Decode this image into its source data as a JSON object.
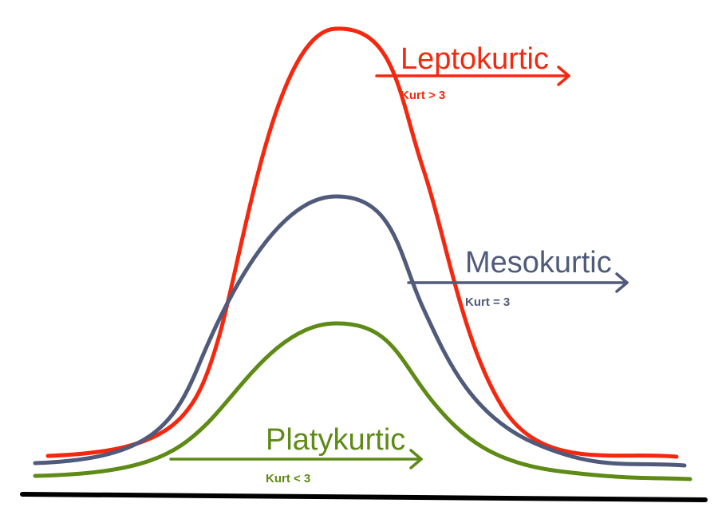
{
  "colors": {
    "leptokurtic": "#f5270e",
    "mesokurtic": "#505a7b",
    "platykurtic": "#5e8a16",
    "baseline": "#000000"
  },
  "leptokurtic": {
    "name": "Leptokurtic",
    "kurtosis_label": "Kurt > 3"
  },
  "mesokurtic": {
    "name": "Mesokurtic",
    "kurtosis_label": "Kurt = 3"
  },
  "platykurtic": {
    "name": "Platykurtic",
    "kurtosis_label": "Kurt < 3"
  }
}
